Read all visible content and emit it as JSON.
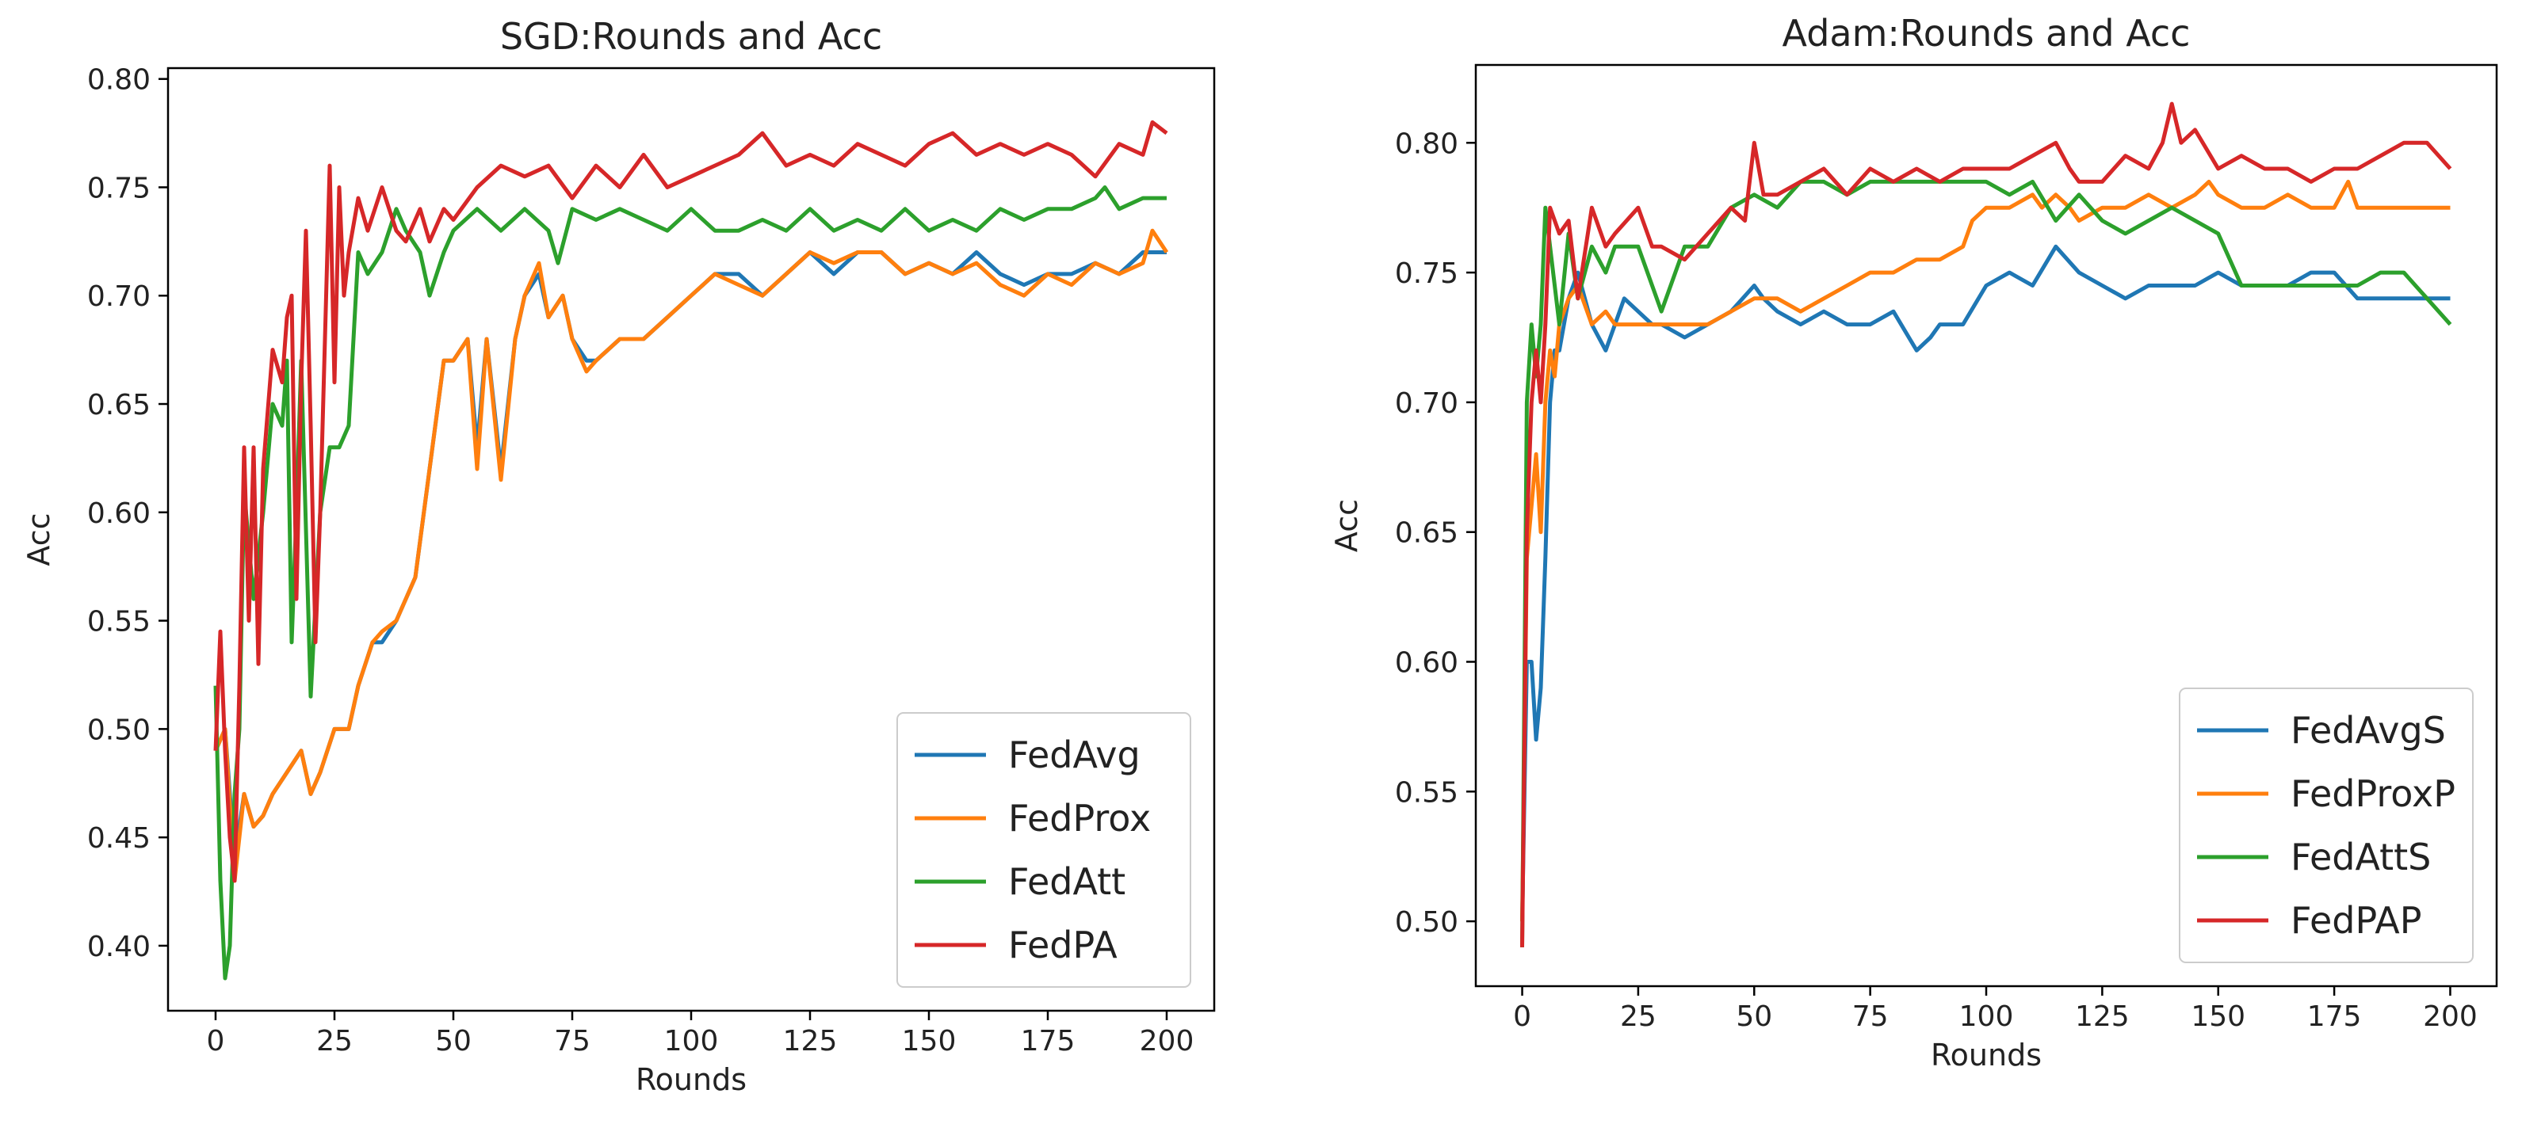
{
  "chart_data": [
    {
      "id": "sgd",
      "type": "line",
      "title": "SGD:Rounds and Acc",
      "xlabel": "Rounds",
      "ylabel": "Acc",
      "xlim": [
        -10,
        210
      ],
      "ylim": [
        0.37,
        0.805
      ],
      "xticks": [
        0,
        25,
        50,
        75,
        100,
        125,
        150,
        175,
        200
      ],
      "yticks": [
        0.4,
        0.45,
        0.5,
        0.55,
        0.6,
        0.65,
        0.7,
        0.75,
        0.8
      ],
      "ytick_labels": [
        "0.40",
        "0.45",
        "0.50",
        "0.55",
        "0.60",
        "0.65",
        "0.70",
        "0.75",
        "0.80"
      ],
      "legend_position": "lower-right",
      "series": [
        {
          "name": "FedAvg",
          "color": "#1f77b4",
          "x": [
            0,
            2,
            4,
            6,
            8,
            10,
            12,
            15,
            18,
            20,
            22,
            25,
            28,
            30,
            33,
            35,
            38,
            40,
            42,
            45,
            48,
            50,
            53,
            55,
            57,
            60,
            63,
            65,
            68,
            70,
            73,
            75,
            78,
            80,
            85,
            90,
            95,
            100,
            105,
            110,
            115,
            120,
            125,
            130,
            135,
            140,
            145,
            150,
            155,
            160,
            165,
            170,
            175,
            180,
            185,
            190,
            195,
            200
          ],
          "values": [
            0.49,
            0.5,
            0.44,
            0.47,
            0.455,
            0.46,
            0.47,
            0.48,
            0.49,
            0.47,
            0.48,
            0.5,
            0.5,
            0.52,
            0.54,
            0.54,
            0.55,
            0.56,
            0.57,
            0.62,
            0.67,
            0.67,
            0.68,
            0.63,
            0.68,
            0.62,
            0.68,
            0.7,
            0.71,
            0.69,
            0.7,
            0.68,
            0.67,
            0.67,
            0.68,
            0.68,
            0.69,
            0.7,
            0.71,
            0.71,
            0.7,
            0.71,
            0.72,
            0.71,
            0.72,
            0.72,
            0.71,
            0.715,
            0.71,
            0.72,
            0.71,
            0.705,
            0.71,
            0.71,
            0.715,
            0.71,
            0.72,
            0.72
          ]
        },
        {
          "name": "FedProx",
          "color": "#ff7f0e",
          "x": [
            0,
            2,
            4,
            6,
            8,
            10,
            12,
            15,
            18,
            20,
            22,
            25,
            28,
            30,
            33,
            35,
            38,
            40,
            42,
            45,
            48,
            50,
            53,
            55,
            57,
            60,
            63,
            65,
            68,
            70,
            73,
            75,
            78,
            80,
            85,
            90,
            95,
            100,
            105,
            110,
            115,
            120,
            125,
            130,
            135,
            140,
            145,
            150,
            155,
            160,
            165,
            170,
            175,
            180,
            185,
            190,
            195,
            197,
            200
          ],
          "values": [
            0.49,
            0.5,
            0.43,
            0.47,
            0.455,
            0.46,
            0.47,
            0.48,
            0.49,
            0.47,
            0.48,
            0.5,
            0.5,
            0.52,
            0.54,
            0.545,
            0.55,
            0.56,
            0.57,
            0.62,
            0.67,
            0.67,
            0.68,
            0.62,
            0.68,
            0.615,
            0.68,
            0.7,
            0.715,
            0.69,
            0.7,
            0.68,
            0.665,
            0.67,
            0.68,
            0.68,
            0.69,
            0.7,
            0.71,
            0.705,
            0.7,
            0.71,
            0.72,
            0.715,
            0.72,
            0.72,
            0.71,
            0.715,
            0.71,
            0.715,
            0.705,
            0.7,
            0.71,
            0.705,
            0.715,
            0.71,
            0.715,
            0.73,
            0.72
          ]
        },
        {
          "name": "FedAtt",
          "color": "#2ca02c",
          "x": [
            0,
            1,
            2,
            3,
            4,
            5,
            6,
            8,
            10,
            12,
            14,
            15,
            16,
            17,
            18,
            20,
            22,
            24,
            26,
            28,
            30,
            32,
            35,
            38,
            40,
            43,
            45,
            48,
            50,
            55,
            60,
            65,
            70,
            72,
            75,
            80,
            85,
            90,
            95,
            100,
            105,
            110,
            115,
            120,
            125,
            130,
            135,
            140,
            145,
            150,
            155,
            160,
            165,
            170,
            175,
            180,
            185,
            187,
            190,
            195,
            200
          ],
          "values": [
            0.52,
            0.43,
            0.385,
            0.4,
            0.47,
            0.5,
            0.61,
            0.56,
            0.6,
            0.65,
            0.64,
            0.67,
            0.54,
            0.6,
            0.67,
            0.515,
            0.6,
            0.63,
            0.63,
            0.64,
            0.72,
            0.71,
            0.72,
            0.74,
            0.73,
            0.72,
            0.7,
            0.72,
            0.73,
            0.74,
            0.73,
            0.74,
            0.73,
            0.715,
            0.74,
            0.735,
            0.74,
            0.735,
            0.73,
            0.74,
            0.73,
            0.73,
            0.735,
            0.73,
            0.74,
            0.73,
            0.735,
            0.73,
            0.74,
            0.73,
            0.735,
            0.73,
            0.74,
            0.735,
            0.74,
            0.74,
            0.745,
            0.75,
            0.74,
            0.745,
            0.745
          ]
        },
        {
          "name": "FedPA",
          "color": "#d62728",
          "x": [
            0,
            1,
            2,
            3,
            4,
            5,
            6,
            7,
            8,
            9,
            10,
            12,
            14,
            15,
            16,
            17,
            18,
            19,
            20,
            21,
            22,
            23,
            24,
            25,
            26,
            27,
            28,
            30,
            32,
            35,
            38,
            40,
            43,
            45,
            48,
            50,
            55,
            60,
            65,
            70,
            75,
            80,
            85,
            90,
            95,
            100,
            105,
            110,
            115,
            120,
            125,
            130,
            135,
            140,
            145,
            150,
            155,
            160,
            165,
            170,
            175,
            180,
            185,
            190,
            195,
            197,
            200
          ],
          "values": [
            0.49,
            0.545,
            0.49,
            0.45,
            0.43,
            0.52,
            0.63,
            0.55,
            0.63,
            0.53,
            0.62,
            0.675,
            0.66,
            0.69,
            0.7,
            0.56,
            0.66,
            0.73,
            0.64,
            0.54,
            0.6,
            0.68,
            0.76,
            0.66,
            0.75,
            0.7,
            0.72,
            0.745,
            0.73,
            0.75,
            0.73,
            0.725,
            0.74,
            0.725,
            0.74,
            0.735,
            0.75,
            0.76,
            0.755,
            0.76,
            0.745,
            0.76,
            0.75,
            0.765,
            0.75,
            0.755,
            0.76,
            0.765,
            0.775,
            0.76,
            0.765,
            0.76,
            0.77,
            0.765,
            0.76,
            0.77,
            0.775,
            0.765,
            0.77,
            0.765,
            0.77,
            0.765,
            0.755,
            0.77,
            0.765,
            0.78,
            0.775
          ]
        }
      ]
    },
    {
      "id": "adam",
      "type": "line",
      "title": "Adam:Rounds and Acc",
      "xlabel": "Rounds",
      "ylabel": "Acc",
      "xlim": [
        -10,
        210
      ],
      "ylim": [
        0.475,
        0.83
      ],
      "xticks": [
        0,
        25,
        50,
        75,
        100,
        125,
        150,
        175,
        200
      ],
      "yticks": [
        0.5,
        0.55,
        0.6,
        0.65,
        0.7,
        0.75,
        0.8
      ],
      "ytick_labels": [
        "0.50",
        "0.55",
        "0.60",
        "0.65",
        "0.70",
        "0.75",
        "0.80"
      ],
      "legend_position": "lower-right",
      "series": [
        {
          "name": "FedAvgS",
          "color": "#1f77b4",
          "x": [
            0,
            1,
            2,
            3,
            4,
            5,
            6,
            7,
            8,
            10,
            12,
            15,
            18,
            20,
            22,
            25,
            28,
            30,
            35,
            40,
            45,
            50,
            52,
            55,
            60,
            65,
            70,
            75,
            80,
            85,
            88,
            90,
            95,
            100,
            105,
            110,
            115,
            120,
            125,
            130,
            135,
            140,
            145,
            150,
            155,
            160,
            165,
            170,
            175,
            180,
            185,
            190,
            195,
            200
          ],
          "values": [
            0.5,
            0.6,
            0.6,
            0.57,
            0.59,
            0.64,
            0.7,
            0.72,
            0.72,
            0.74,
            0.75,
            0.73,
            0.72,
            0.73,
            0.74,
            0.735,
            0.73,
            0.73,
            0.725,
            0.73,
            0.735,
            0.745,
            0.74,
            0.735,
            0.73,
            0.735,
            0.73,
            0.73,
            0.735,
            0.72,
            0.725,
            0.73,
            0.73,
            0.745,
            0.75,
            0.745,
            0.76,
            0.75,
            0.745,
            0.74,
            0.745,
            0.745,
            0.745,
            0.75,
            0.745,
            0.745,
            0.745,
            0.75,
            0.75,
            0.74,
            0.74,
            0.74,
            0.74,
            0.74
          ]
        },
        {
          "name": "FedProxP",
          "color": "#ff7f0e",
          "x": [
            0,
            1,
            2,
            3,
            4,
            5,
            6,
            7,
            8,
            10,
            12,
            15,
            18,
            20,
            25,
            30,
            35,
            40,
            45,
            50,
            55,
            60,
            65,
            70,
            75,
            80,
            85,
            90,
            95,
            97,
            100,
            105,
            110,
            112,
            115,
            118,
            120,
            125,
            130,
            135,
            140,
            145,
            148,
            150,
            155,
            160,
            165,
            170,
            175,
            178,
            180,
            185,
            190,
            195,
            200
          ],
          "values": [
            0.5,
            0.64,
            0.66,
            0.68,
            0.65,
            0.7,
            0.72,
            0.71,
            0.73,
            0.74,
            0.745,
            0.73,
            0.735,
            0.73,
            0.73,
            0.73,
            0.73,
            0.73,
            0.735,
            0.74,
            0.74,
            0.735,
            0.74,
            0.745,
            0.75,
            0.75,
            0.755,
            0.755,
            0.76,
            0.77,
            0.775,
            0.775,
            0.78,
            0.775,
            0.78,
            0.775,
            0.77,
            0.775,
            0.775,
            0.78,
            0.775,
            0.78,
            0.785,
            0.78,
            0.775,
            0.775,
            0.78,
            0.775,
            0.775,
            0.785,
            0.775,
            0.775,
            0.775,
            0.775,
            0.775
          ]
        },
        {
          "name": "FedAttS",
          "color": "#2ca02c",
          "x": [
            0,
            1,
            2,
            3,
            4,
            5,
            6,
            8,
            10,
            12,
            15,
            18,
            20,
            25,
            30,
            35,
            40,
            45,
            50,
            55,
            60,
            65,
            70,
            75,
            80,
            85,
            90,
            95,
            100,
            105,
            110,
            115,
            120,
            125,
            130,
            135,
            140,
            145,
            150,
            155,
            160,
            165,
            170,
            175,
            180,
            185,
            190,
            195,
            200
          ],
          "values": [
            0.49,
            0.7,
            0.73,
            0.71,
            0.73,
            0.775,
            0.76,
            0.73,
            0.765,
            0.74,
            0.76,
            0.75,
            0.76,
            0.76,
            0.735,
            0.76,
            0.76,
            0.775,
            0.78,
            0.775,
            0.785,
            0.785,
            0.78,
            0.785,
            0.785,
            0.785,
            0.785,
            0.785,
            0.785,
            0.78,
            0.785,
            0.77,
            0.78,
            0.77,
            0.765,
            0.77,
            0.775,
            0.77,
            0.765,
            0.745,
            0.745,
            0.745,
            0.745,
            0.745,
            0.745,
            0.75,
            0.75,
            0.74,
            0.73
          ]
        },
        {
          "name": "FedPAP",
          "color": "#d62728",
          "x": [
            0,
            1,
            2,
            3,
            4,
            5,
            6,
            8,
            10,
            12,
            15,
            18,
            20,
            25,
            28,
            30,
            35,
            40,
            45,
            48,
            50,
            52,
            55,
            60,
            65,
            70,
            75,
            80,
            85,
            90,
            95,
            100,
            105,
            110,
            115,
            118,
            120,
            125,
            130,
            135,
            138,
            140,
            142,
            145,
            150,
            155,
            160,
            165,
            170,
            175,
            180,
            185,
            190,
            195,
            200
          ],
          "values": [
            0.49,
            0.65,
            0.7,
            0.72,
            0.7,
            0.73,
            0.775,
            0.765,
            0.77,
            0.74,
            0.775,
            0.76,
            0.765,
            0.775,
            0.76,
            0.76,
            0.755,
            0.765,
            0.775,
            0.77,
            0.8,
            0.78,
            0.78,
            0.785,
            0.79,
            0.78,
            0.79,
            0.785,
            0.79,
            0.785,
            0.79,
            0.79,
            0.79,
            0.795,
            0.8,
            0.79,
            0.785,
            0.785,
            0.795,
            0.79,
            0.8,
            0.815,
            0.8,
            0.805,
            0.79,
            0.795,
            0.79,
            0.79,
            0.785,
            0.79,
            0.79,
            0.795,
            0.8,
            0.8,
            0.79
          ]
        }
      ]
    }
  ]
}
